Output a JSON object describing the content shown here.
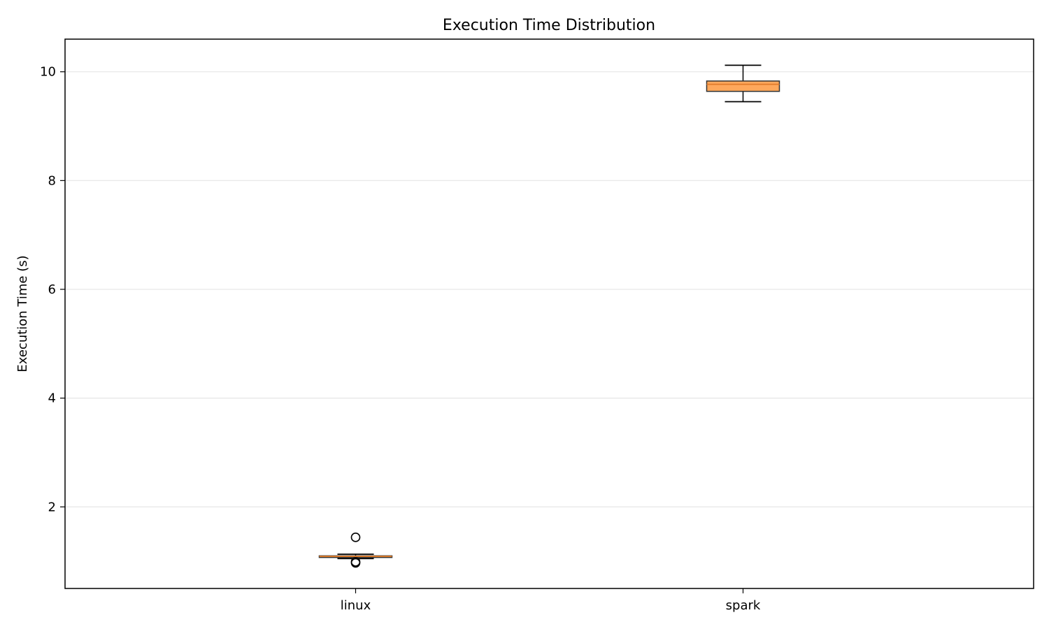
{
  "chart_data": {
    "type": "boxplot",
    "title": "Execution Time Distribution",
    "xlabel": "",
    "ylabel": "Execution Time (s)",
    "ylim": [
      0.5,
      10.6
    ],
    "yticks": [
      2,
      4,
      6,
      8,
      10
    ],
    "grid": "y",
    "box_color": "#ff9f4a",
    "median_color": "#e07b2a",
    "categories": [
      "linux",
      "spark"
    ],
    "boxes": [
      {
        "category": "linux",
        "whisker_low": 1.05,
        "q1": 1.07,
        "median": 1.09,
        "q3": 1.1,
        "whisker_high": 1.13,
        "outliers": [
          1.44,
          0.99,
          0.97
        ]
      },
      {
        "category": "spark",
        "whisker_low": 9.45,
        "q1": 9.64,
        "median": 9.77,
        "q3": 9.83,
        "whisker_high": 10.12,
        "outliers": []
      }
    ]
  }
}
